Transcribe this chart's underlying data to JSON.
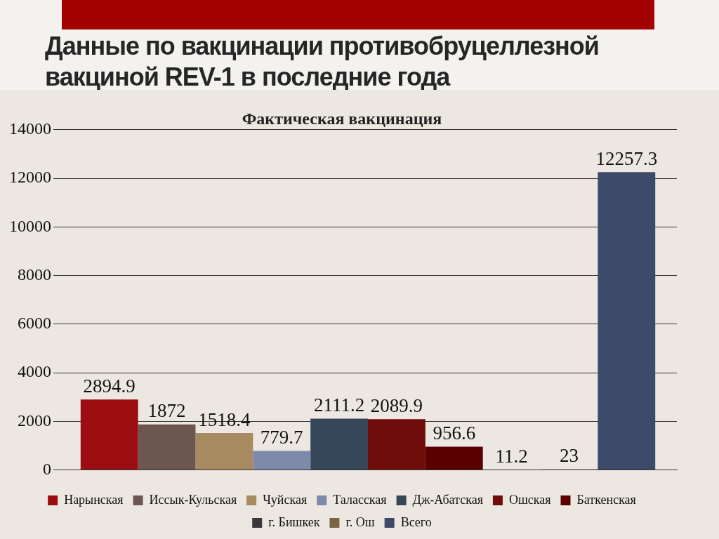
{
  "chart_data": {
    "type": "bar",
    "title": "Данные по вакцинации противобруцеллезной вакциной REV-1 в последние года",
    "subtitle": "Фактическая вакцинация",
    "categories": [
      null
    ],
    "series": [
      {
        "name": "Нарынская",
        "color": "#9b0d10",
        "values": [
          2894.9
        ]
      },
      {
        "name": "Иссык-Кульская",
        "color": "#6b5750",
        "values": [
          1872
        ]
      },
      {
        "name": "Чуйская",
        "color": "#a88a60",
        "values": [
          1518.4
        ]
      },
      {
        "name": "Таласская",
        "color": "#7d8aaa",
        "values": [
          779.7
        ]
      },
      {
        "name": "Дж-Абатская",
        "color": "#37475a",
        "values": [
          2111.2
        ]
      },
      {
        "name": "Ошская",
        "color": "#6e0d0a",
        "values": [
          2089.9
        ]
      },
      {
        "name": "Баткенская",
        "color": "#5a0000",
        "values": [
          956.6
        ]
      },
      {
        "name": "г. Бишкек",
        "color": "#3a3838",
        "values": [
          11.2
        ]
      },
      {
        "name": "г. Ош",
        "color": "#7a6540",
        "values": [
          23
        ]
      },
      {
        "name": "Всего",
        "color": "#3e4a6a",
        "values": [
          12257.3
        ]
      }
    ],
    "ylim": [
      0,
      14000
    ],
    "yticks": [
      0,
      2000,
      4000,
      6000,
      8000,
      10000,
      12000,
      14000
    ],
    "grid": "y",
    "legend": "bottom",
    "data_labels": true
  }
}
